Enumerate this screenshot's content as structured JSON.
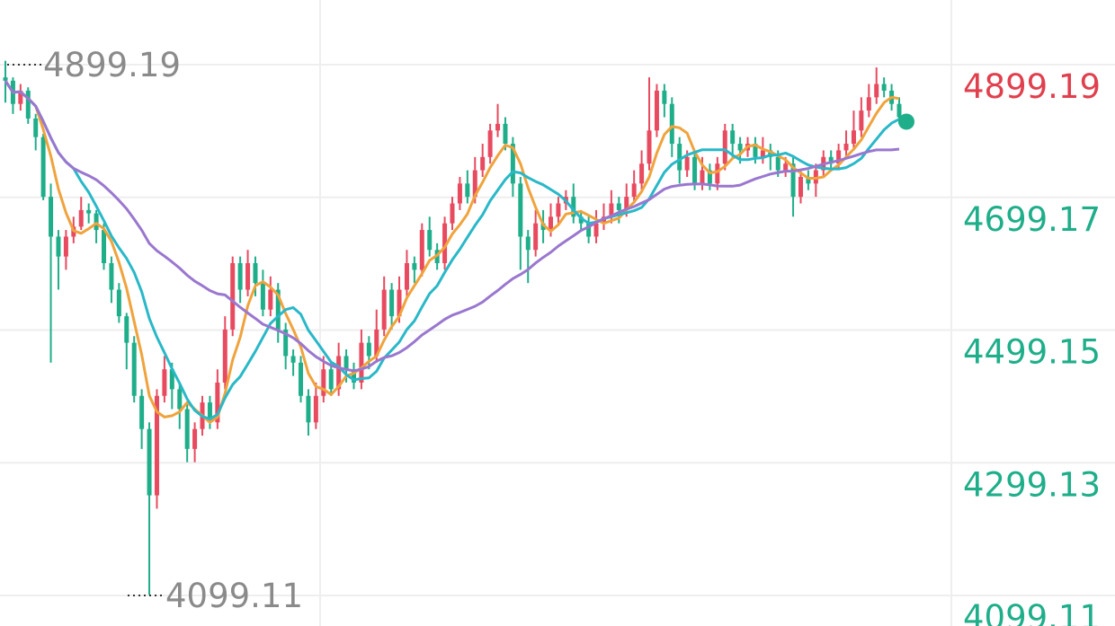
{
  "chart_data": {
    "type": "candlestick",
    "y_axis": {
      "ticks": [
        "4899.19",
        "4699.17",
        "4499.15",
        "4299.13",
        "4099.11"
      ],
      "range": [
        4099.11,
        4899.19
      ],
      "position": "right",
      "grid": true
    },
    "annotations": {
      "high_label": "4899.19",
      "low_label": "4099.11"
    },
    "colors": {
      "up": "#e84a5f",
      "down": "#1fae8a",
      "ma_short": "#f0a33c",
      "ma_mid": "#29b8c8",
      "ma_long": "#9a77cf",
      "axis_top_label": "#e0404e",
      "axis_label": "#1fae8a",
      "grid": "#eeeeee",
      "annotation": "#8a8a8a"
    },
    "candles": [
      [
        4880,
        4875,
        4905,
        4842
      ],
      [
        4875,
        4840,
        4880,
        4825
      ],
      [
        4840,
        4860,
        4870,
        4830
      ],
      [
        4860,
        4818,
        4865,
        4810
      ],
      [
        4818,
        4790,
        4825,
        4770
      ],
      [
        4790,
        4700,
        4795,
        4695
      ],
      [
        4700,
        4640,
        4720,
        4450
      ],
      [
        4640,
        4610,
        4650,
        4560
      ],
      [
        4610,
        4640,
        4650,
        4590
      ],
      [
        4640,
        4655,
        4670,
        4630
      ],
      [
        4655,
        4680,
        4700,
        4650
      ],
      [
        4680,
        4675,
        4690,
        4660
      ],
      [
        4675,
        4650,
        4680,
        4630
      ],
      [
        4650,
        4600,
        4660,
        4590
      ],
      [
        4600,
        4560,
        4610,
        4540
      ],
      [
        4560,
        4520,
        4570,
        4510
      ],
      [
        4520,
        4480,
        4525,
        4440
      ],
      [
        4480,
        4400,
        4490,
        4390
      ],
      [
        4400,
        4350,
        4410,
        4320
      ],
      [
        4350,
        4250,
        4360,
        4100
      ],
      [
        4250,
        4400,
        4410,
        4230
      ],
      [
        4400,
        4440,
        4460,
        4390
      ],
      [
        4440,
        4410,
        4450,
        4380
      ],
      [
        4410,
        4380,
        4420,
        4350
      ],
      [
        4380,
        4320,
        4390,
        4300
      ],
      [
        4320,
        4350,
        4360,
        4300
      ],
      [
        4350,
        4390,
        4400,
        4340
      ],
      [
        4390,
        4360,
        4400,
        4350
      ],
      [
        4360,
        4420,
        4440,
        4350
      ],
      [
        4420,
        4500,
        4520,
        4410
      ],
      [
        4500,
        4600,
        4610,
        4490
      ],
      [
        4600,
        4560,
        4610,
        4540
      ],
      [
        4560,
        4600,
        4620,
        4550
      ],
      [
        4600,
        4570,
        4610,
        4550
      ],
      [
        4570,
        4530,
        4590,
        4520
      ],
      [
        4530,
        4560,
        4580,
        4520
      ],
      [
        4560,
        4500,
        4570,
        4480
      ],
      [
        4500,
        4460,
        4510,
        4440
      ],
      [
        4460,
        4450,
        4470,
        4430
      ],
      [
        4450,
        4400,
        4460,
        4390
      ],
      [
        4400,
        4360,
        4410,
        4340
      ],
      [
        4360,
        4400,
        4420,
        4350
      ],
      [
        4400,
        4440,
        4460,
        4390
      ],
      [
        4440,
        4410,
        4450,
        4400
      ],
      [
        4410,
        4460,
        4480,
        4400
      ],
      [
        4460,
        4440,
        4470,
        4420
      ],
      [
        4440,
        4420,
        4450,
        4410
      ],
      [
        4420,
        4480,
        4500,
        4410
      ],
      [
        4480,
        4460,
        4490,
        4440
      ],
      [
        4460,
        4500,
        4530,
        4450
      ],
      [
        4500,
        4560,
        4580,
        4490
      ],
      [
        4560,
        4520,
        4570,
        4500
      ],
      [
        4520,
        4560,
        4580,
        4510
      ],
      [
        4560,
        4600,
        4620,
        4550
      ],
      [
        4600,
        4590,
        4610,
        4570
      ],
      [
        4590,
        4650,
        4660,
        4580
      ],
      [
        4650,
        4620,
        4670,
        4610
      ],
      [
        4620,
        4600,
        4630,
        4590
      ],
      [
        4600,
        4660,
        4670,
        4590
      ],
      [
        4660,
        4690,
        4700,
        4650
      ],
      [
        4690,
        4720,
        4730,
        4680
      ],
      [
        4720,
        4700,
        4740,
        4690
      ],
      [
        4700,
        4740,
        4760,
        4690
      ],
      [
        4740,
        4760,
        4780,
        4730
      ],
      [
        4760,
        4800,
        4810,
        4750
      ],
      [
        4800,
        4810,
        4840,
        4790
      ],
      [
        4810,
        4780,
        4820,
        4770
      ],
      [
        4780,
        4720,
        4790,
        4700
      ],
      [
        4720,
        4640,
        4730,
        4590
      ],
      [
        4640,
        4620,
        4650,
        4570
      ],
      [
        4620,
        4660,
        4680,
        4610
      ],
      [
        4660,
        4650,
        4680,
        4630
      ],
      [
        4650,
        4670,
        4690,
        4640
      ],
      [
        4670,
        4690,
        4700,
        4660
      ],
      [
        4690,
        4700,
        4710,
        4680
      ],
      [
        4700,
        4670,
        4720,
        4660
      ],
      [
        4670,
        4660,
        4680,
        4650
      ],
      [
        4660,
        4640,
        4670,
        4630
      ],
      [
        4640,
        4660,
        4680,
        4630
      ],
      [
        4660,
        4670,
        4690,
        4650
      ],
      [
        4670,
        4690,
        4710,
        4660
      ],
      [
        4690,
        4680,
        4700,
        4660
      ],
      [
        4680,
        4700,
        4720,
        4670
      ],
      [
        4700,
        4720,
        4740,
        4690
      ],
      [
        4720,
        4750,
        4770,
        4710
      ],
      [
        4750,
        4800,
        4880,
        4740
      ],
      [
        4800,
        4860,
        4870,
        4790
      ],
      [
        4860,
        4840,
        4870,
        4820
      ],
      [
        4840,
        4780,
        4850,
        4760
      ],
      [
        4780,
        4740,
        4790,
        4720
      ],
      [
        4740,
        4760,
        4770,
        4730
      ],
      [
        4760,
        4720,
        4770,
        4710
      ],
      [
        4720,
        4740,
        4760,
        4710
      ],
      [
        4740,
        4720,
        4750,
        4710
      ],
      [
        4720,
        4750,
        4760,
        4710
      ],
      [
        4750,
        4800,
        4810,
        4740
      ],
      [
        4800,
        4780,
        4810,
        4760
      ],
      [
        4780,
        4770,
        4790,
        4750
      ],
      [
        4770,
        4780,
        4790,
        4760
      ],
      [
        4780,
        4760,
        4790,
        4750
      ],
      [
        4760,
        4770,
        4790,
        4750
      ],
      [
        4770,
        4760,
        4780,
        4740
      ],
      [
        4760,
        4740,
        4770,
        4730
      ],
      [
        4740,
        4750,
        4760,
        4730
      ],
      [
        4750,
        4700,
        4760,
        4670
      ],
      [
        4700,
        4730,
        4740,
        4690
      ],
      [
        4730,
        4720,
        4740,
        4710
      ],
      [
        4720,
        4740,
        4750,
        4700
      ],
      [
        4740,
        4760,
        4770,
        4730
      ],
      [
        4760,
        4750,
        4770,
        4740
      ],
      [
        4750,
        4770,
        4780,
        4740
      ],
      [
        4770,
        4780,
        4800,
        4760
      ],
      [
        4780,
        4800,
        4830,
        4770
      ],
      [
        4800,
        4830,
        4850,
        4790
      ],
      [
        4830,
        4850,
        4870,
        4820
      ],
      [
        4850,
        4870,
        4895,
        4840
      ],
      [
        4870,
        4860,
        4880,
        4850
      ],
      [
        4860,
        4840,
        4870,
        4830
      ],
      [
        4840,
        4820,
        4850,
        4810
      ]
    ]
  }
}
